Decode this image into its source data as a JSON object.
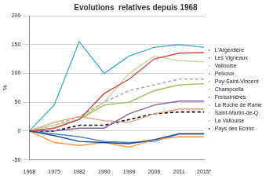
{
  "chart_data": {
    "type": "line",
    "title": "Evolutions  relatives depuis 1968",
    "y_label": "%",
    "categories": [
      "1968",
      "1975",
      "1982",
      "1990",
      "1999",
      "2006",
      "2011",
      "2015*"
    ],
    "ylim": [
      -50,
      200
    ],
    "yticks": [
      -50,
      0,
      50,
      100,
      150,
      200
    ],
    "grid": true,
    "legend": "right",
    "series": [
      {
        "name": "L'Argentière",
        "color": "#1f497d",
        "line_style": "solid",
        "values": [
          0,
          -8,
          -18,
          -20,
          -22,
          -15,
          -5,
          -5
        ]
      },
      {
        "name": "Les Vigneaux",
        "color": "#c0504d",
        "line_style": "solid",
        "values": [
          0,
          5,
          20,
          65,
          90,
          125,
          135,
          136
        ]
      },
      {
        "name": "Vallouise",
        "color": "#9bbb59",
        "line_style": "solid",
        "values": [
          0,
          5,
          20,
          45,
          50,
          70,
          80,
          82
        ]
      },
      {
        "name": "Pelvoux",
        "color": "#8064a2",
        "line_style": "solid",
        "values": [
          0,
          0,
          5,
          5,
          30,
          45,
          52,
          52
        ]
      },
      {
        "name": "Puy-Saint-Vincent",
        "color": "#4bacc6",
        "line_style": "solid",
        "values": [
          0,
          45,
          155,
          100,
          130,
          145,
          150,
          145
        ]
      },
      {
        "name": "Champcella",
        "color": "#f79646",
        "line_style": "solid",
        "values": [
          0,
          -20,
          -25,
          -20,
          -28,
          -15,
          -10,
          -10
        ]
      },
      {
        "name": "Freissinières",
        "color": "#4f81bd",
        "line_style": "solid",
        "values": [
          0,
          -5,
          -10,
          -18,
          -20,
          -18,
          -5,
          -5
        ]
      },
      {
        "name": "La Roche de Rame",
        "color": "#e6a07a",
        "line_style": "solid",
        "values": [
          0,
          15,
          25,
          18,
          15,
          30,
          38,
          38
        ]
      },
      {
        "name": "Saint-Martin-de-Q.",
        "color": "#c3d69b",
        "line_style": "solid",
        "values": [
          0,
          10,
          20,
          50,
          100,
          130,
          122,
          120
        ]
      },
      {
        "name": "La Vallouise",
        "color": "#b3a2c7",
        "line_style": "dashed",
        "values": [
          0,
          10,
          25,
          50,
          70,
          80,
          90,
          90
        ]
      },
      {
        "name": "Pays des Ecrins",
        "color": "#000000",
        "line_style": "dashed",
        "values": [
          0,
          0,
          10,
          10,
          20,
          30,
          33,
          33
        ]
      }
    ]
  }
}
